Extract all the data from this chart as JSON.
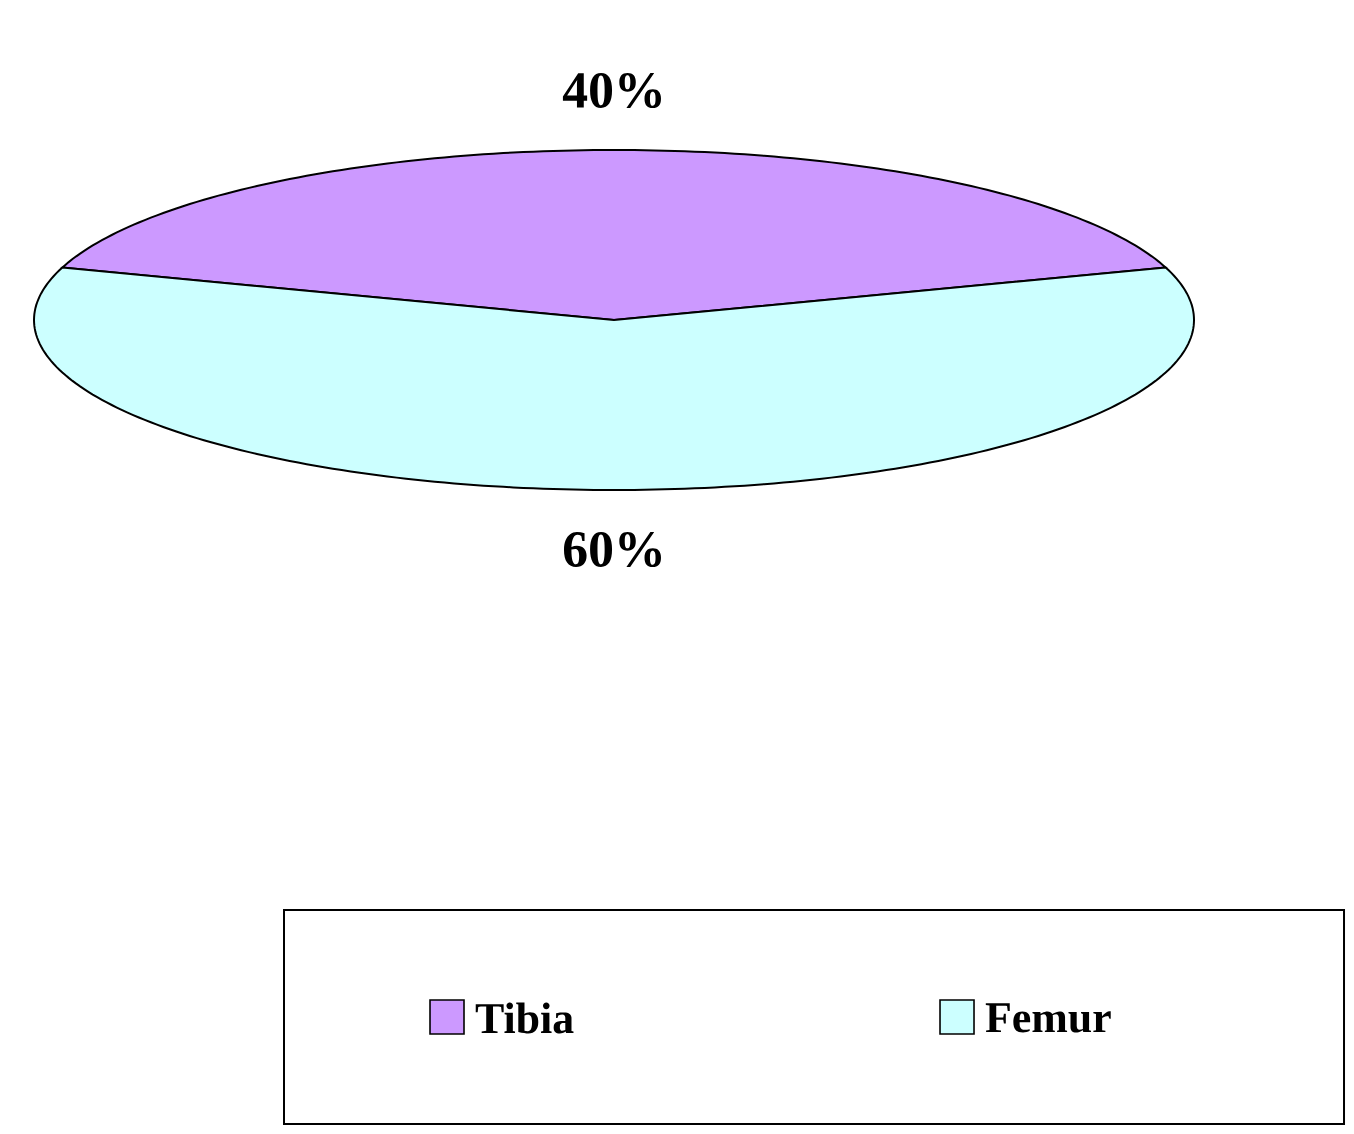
{
  "chart_data": {
    "type": "pie",
    "categories": [
      "Tibia",
      "Femur"
    ],
    "values": [
      40,
      60
    ],
    "colors": [
      "#cc99ff",
      "#ccffff"
    ],
    "value_labels": [
      "40%",
      "60%"
    ],
    "legend": "bottom"
  }
}
